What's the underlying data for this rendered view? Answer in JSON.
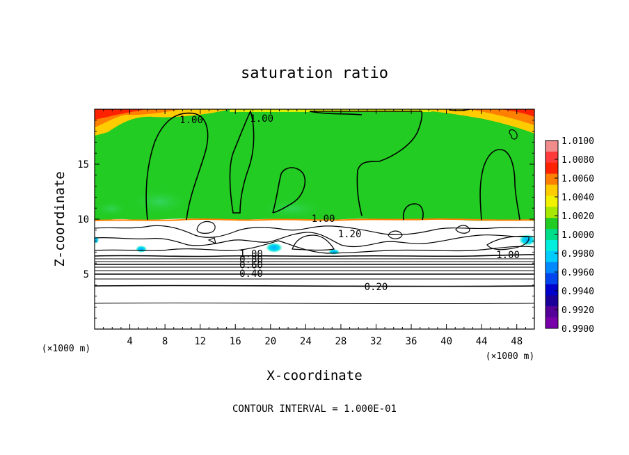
{
  "chart_data": {
    "type": "heatmap",
    "title": "saturation ratio",
    "xlabel": "X-coordinate",
    "ylabel": "Z-coordinate",
    "x_unit": "(×1000 m)",
    "x_unit_right": "(×1000 m)",
    "xlim": [
      0,
      50
    ],
    "ylim": [
      0,
      20
    ],
    "x_ticks": [
      4,
      8,
      12,
      16,
      20,
      24,
      28,
      32,
      36,
      40,
      44,
      48
    ],
    "y_ticks": [
      5,
      10,
      15
    ],
    "note": "CONTOUR INTERVAL = 1.000E-01",
    "colorbar": {
      "labels": [
        "1.0100",
        "1.0080",
        "1.0060",
        "1.0040",
        "1.0020",
        "1.0000",
        "0.9980",
        "0.9960",
        "0.9940",
        "0.9920",
        "0.9900"
      ],
      "colors": [
        "#f08c8c",
        "#ff3a3a",
        "#ff2200",
        "#ff7f00",
        "#ffcc00",
        "#f2f200",
        "#a8e800",
        "#22cc22",
        "#00dd88",
        "#00eedd",
        "#00ccff",
        "#0088ff",
        "#0044ee",
        "#0000cc",
        "#1a0099",
        "#550099",
        "#7700aa"
      ]
    },
    "contour_labels": [
      {
        "text": "1.00",
        "x": 11.0,
        "y": 19.0
      },
      {
        "text": "1.00",
        "x": 19.0,
        "y": 19.1
      },
      {
        "text": "1.00",
        "x": 26.0,
        "y": 10.0
      },
      {
        "text": "1.20",
        "x": 29.0,
        "y": 8.6
      },
      {
        "text": "1.00",
        "x": 17.8,
        "y": 6.8
      },
      {
        "text": "0.80",
        "x": 17.8,
        "y": 6.3
      },
      {
        "text": "0.60",
        "x": 17.8,
        "y": 5.8
      },
      {
        "text": "0.40",
        "x": 17.8,
        "y": 5.0
      },
      {
        "text": "0.20",
        "x": 32.0,
        "y": 3.8
      },
      {
        "text": "1.00",
        "x": 47.0,
        "y": 6.7
      }
    ]
  }
}
